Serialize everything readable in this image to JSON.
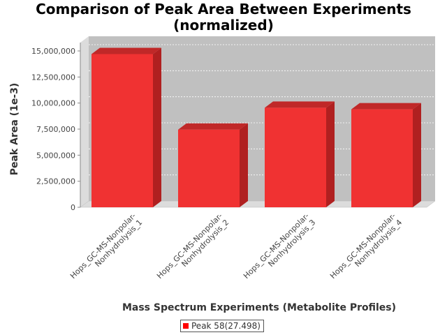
{
  "chart_data": {
    "type": "bar",
    "title": "Comparison of Peak Area Between Experiments\n(normalized)",
    "xlabel": "Mass Spectrum Experiments (Metabolite Profiles)",
    "ylabel": "Peak Area (1e-3)",
    "categories": [
      [
        "Hops_GC-MS-Nonpolar-",
        "Nonhydrolysis_1"
      ],
      [
        "Hops_GC-MS-Nonpolar-",
        "Nonhydrolysis_2"
      ],
      [
        "Hops_GC-MS-Nonpolar-",
        "Nonhydrolysis_3"
      ],
      [
        "Hops_GC-MS-Nonpolar-",
        "Nonhydrolysis_4"
      ]
    ],
    "series": [
      {
        "name": "Peak 58(27.498)",
        "values": [
          14700000,
          7450000,
          9550000,
          9400000
        ]
      }
    ],
    "ylim": [
      0,
      15000000
    ],
    "yticks": [
      0,
      2500000,
      5000000,
      7500000,
      10000000,
      12500000,
      15000000
    ],
    "ytick_labels": [
      "0",
      "2,500,000",
      "5,000,000",
      "7,500,000",
      "10,000,000",
      "12,500,000",
      "15,000,000"
    ],
    "grid": true,
    "legend_position": "bottom",
    "colors": {
      "bar": "#ff0000",
      "plot_background": "#c0c0c0",
      "wall": "#dcdcdc"
    }
  }
}
